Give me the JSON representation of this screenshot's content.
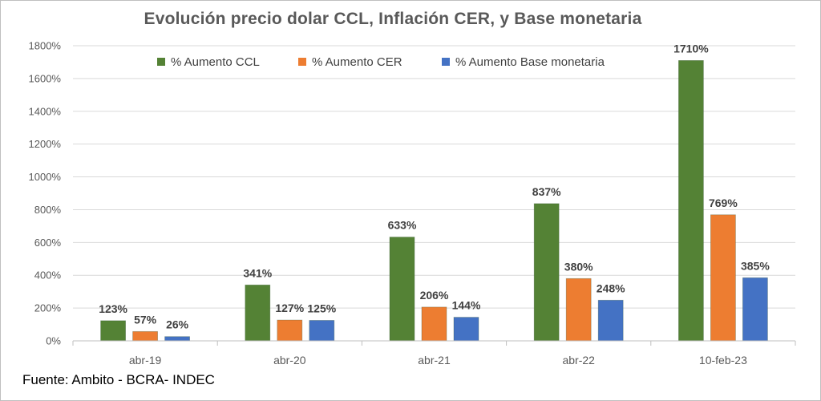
{
  "chart_data": {
    "type": "bar",
    "title": "Evolución  precio dolar CCL, Inflación CER, y Base monetaria",
    "categories": [
      "abr-19",
      "abr-20",
      "abr-21",
      "abr-22",
      "10-feb-23"
    ],
    "series": [
      {
        "name": "% Aumento CCL",
        "color": "#548235",
        "values": [
          123,
          341,
          633,
          837,
          1710
        ]
      },
      {
        "name": "% Aumento CER",
        "color": "#ED7D31",
        "values": [
          57,
          127,
          206,
          380,
          769
        ]
      },
      {
        "name": "% Aumento Base monetaria",
        "color": "#4472C4",
        "values": [
          26,
          125,
          144,
          248,
          385
        ]
      }
    ],
    "ylim": [
      0,
      1800
    ],
    "yticks": [
      0,
      200,
      400,
      600,
      800,
      1000,
      1200,
      1400,
      1600,
      1800
    ],
    "value_suffix": "%",
    "grid": true,
    "legend_position": "top"
  },
  "footer": {
    "source": "Fuente: Ambito - BCRA- INDEC"
  }
}
